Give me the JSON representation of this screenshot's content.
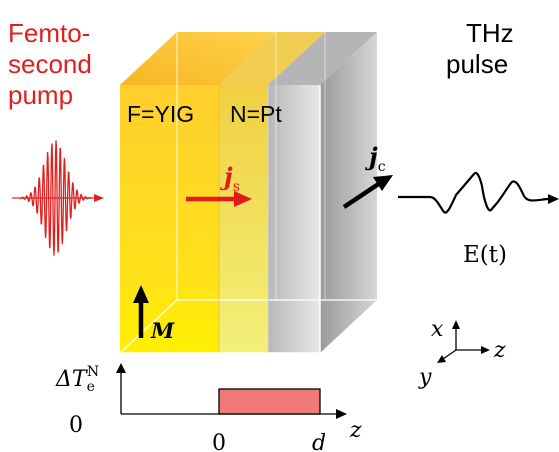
{
  "pump_label": [
    "Femto-",
    "second",
    "pump"
  ],
  "thz_label": [
    "THz",
    "pulse"
  ],
  "layer_f_label": "F=YIG",
  "layer_n_label": "N=Pt",
  "js_symbol": "j",
  "js_subscript": "s",
  "jc_symbol": "j",
  "jc_subscript": "c",
  "field_label": "E(t)",
  "magnetization_label": "M",
  "axes": {
    "x": "x",
    "y": "y",
    "z": "z"
  },
  "graph": {
    "ylabel_main": "ΔT",
    "ylabel_sub": "e",
    "ylabel_sup": "N",
    "y_origin": "0",
    "x_origin": "0",
    "x_end": "d",
    "x_axis": "z"
  },
  "colors": {
    "pump": "#e0201f",
    "yig": "#ffd21a",
    "pt": "#f5e35a",
    "substrate": "#a8a8a8",
    "js_arrow": "#e21a1a",
    "bar": "#f07a78"
  }
}
